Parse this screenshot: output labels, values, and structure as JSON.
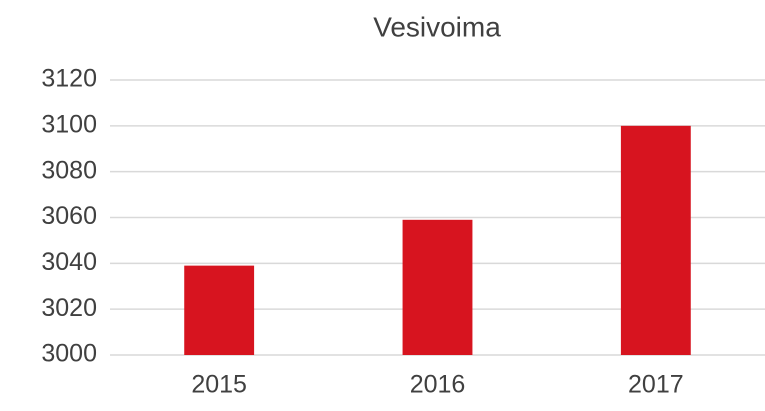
{
  "chart_data": {
    "type": "bar",
    "title": "Vesivoima",
    "categories": [
      "2015",
      "2016",
      "2017"
    ],
    "values": [
      3039,
      3059,
      3100
    ],
    "color": "#d7141f",
    "ylim": [
      3000,
      3120
    ],
    "yticks": [
      3000,
      3020,
      3040,
      3060,
      3080,
      3100,
      3120
    ],
    "grid": true
  }
}
